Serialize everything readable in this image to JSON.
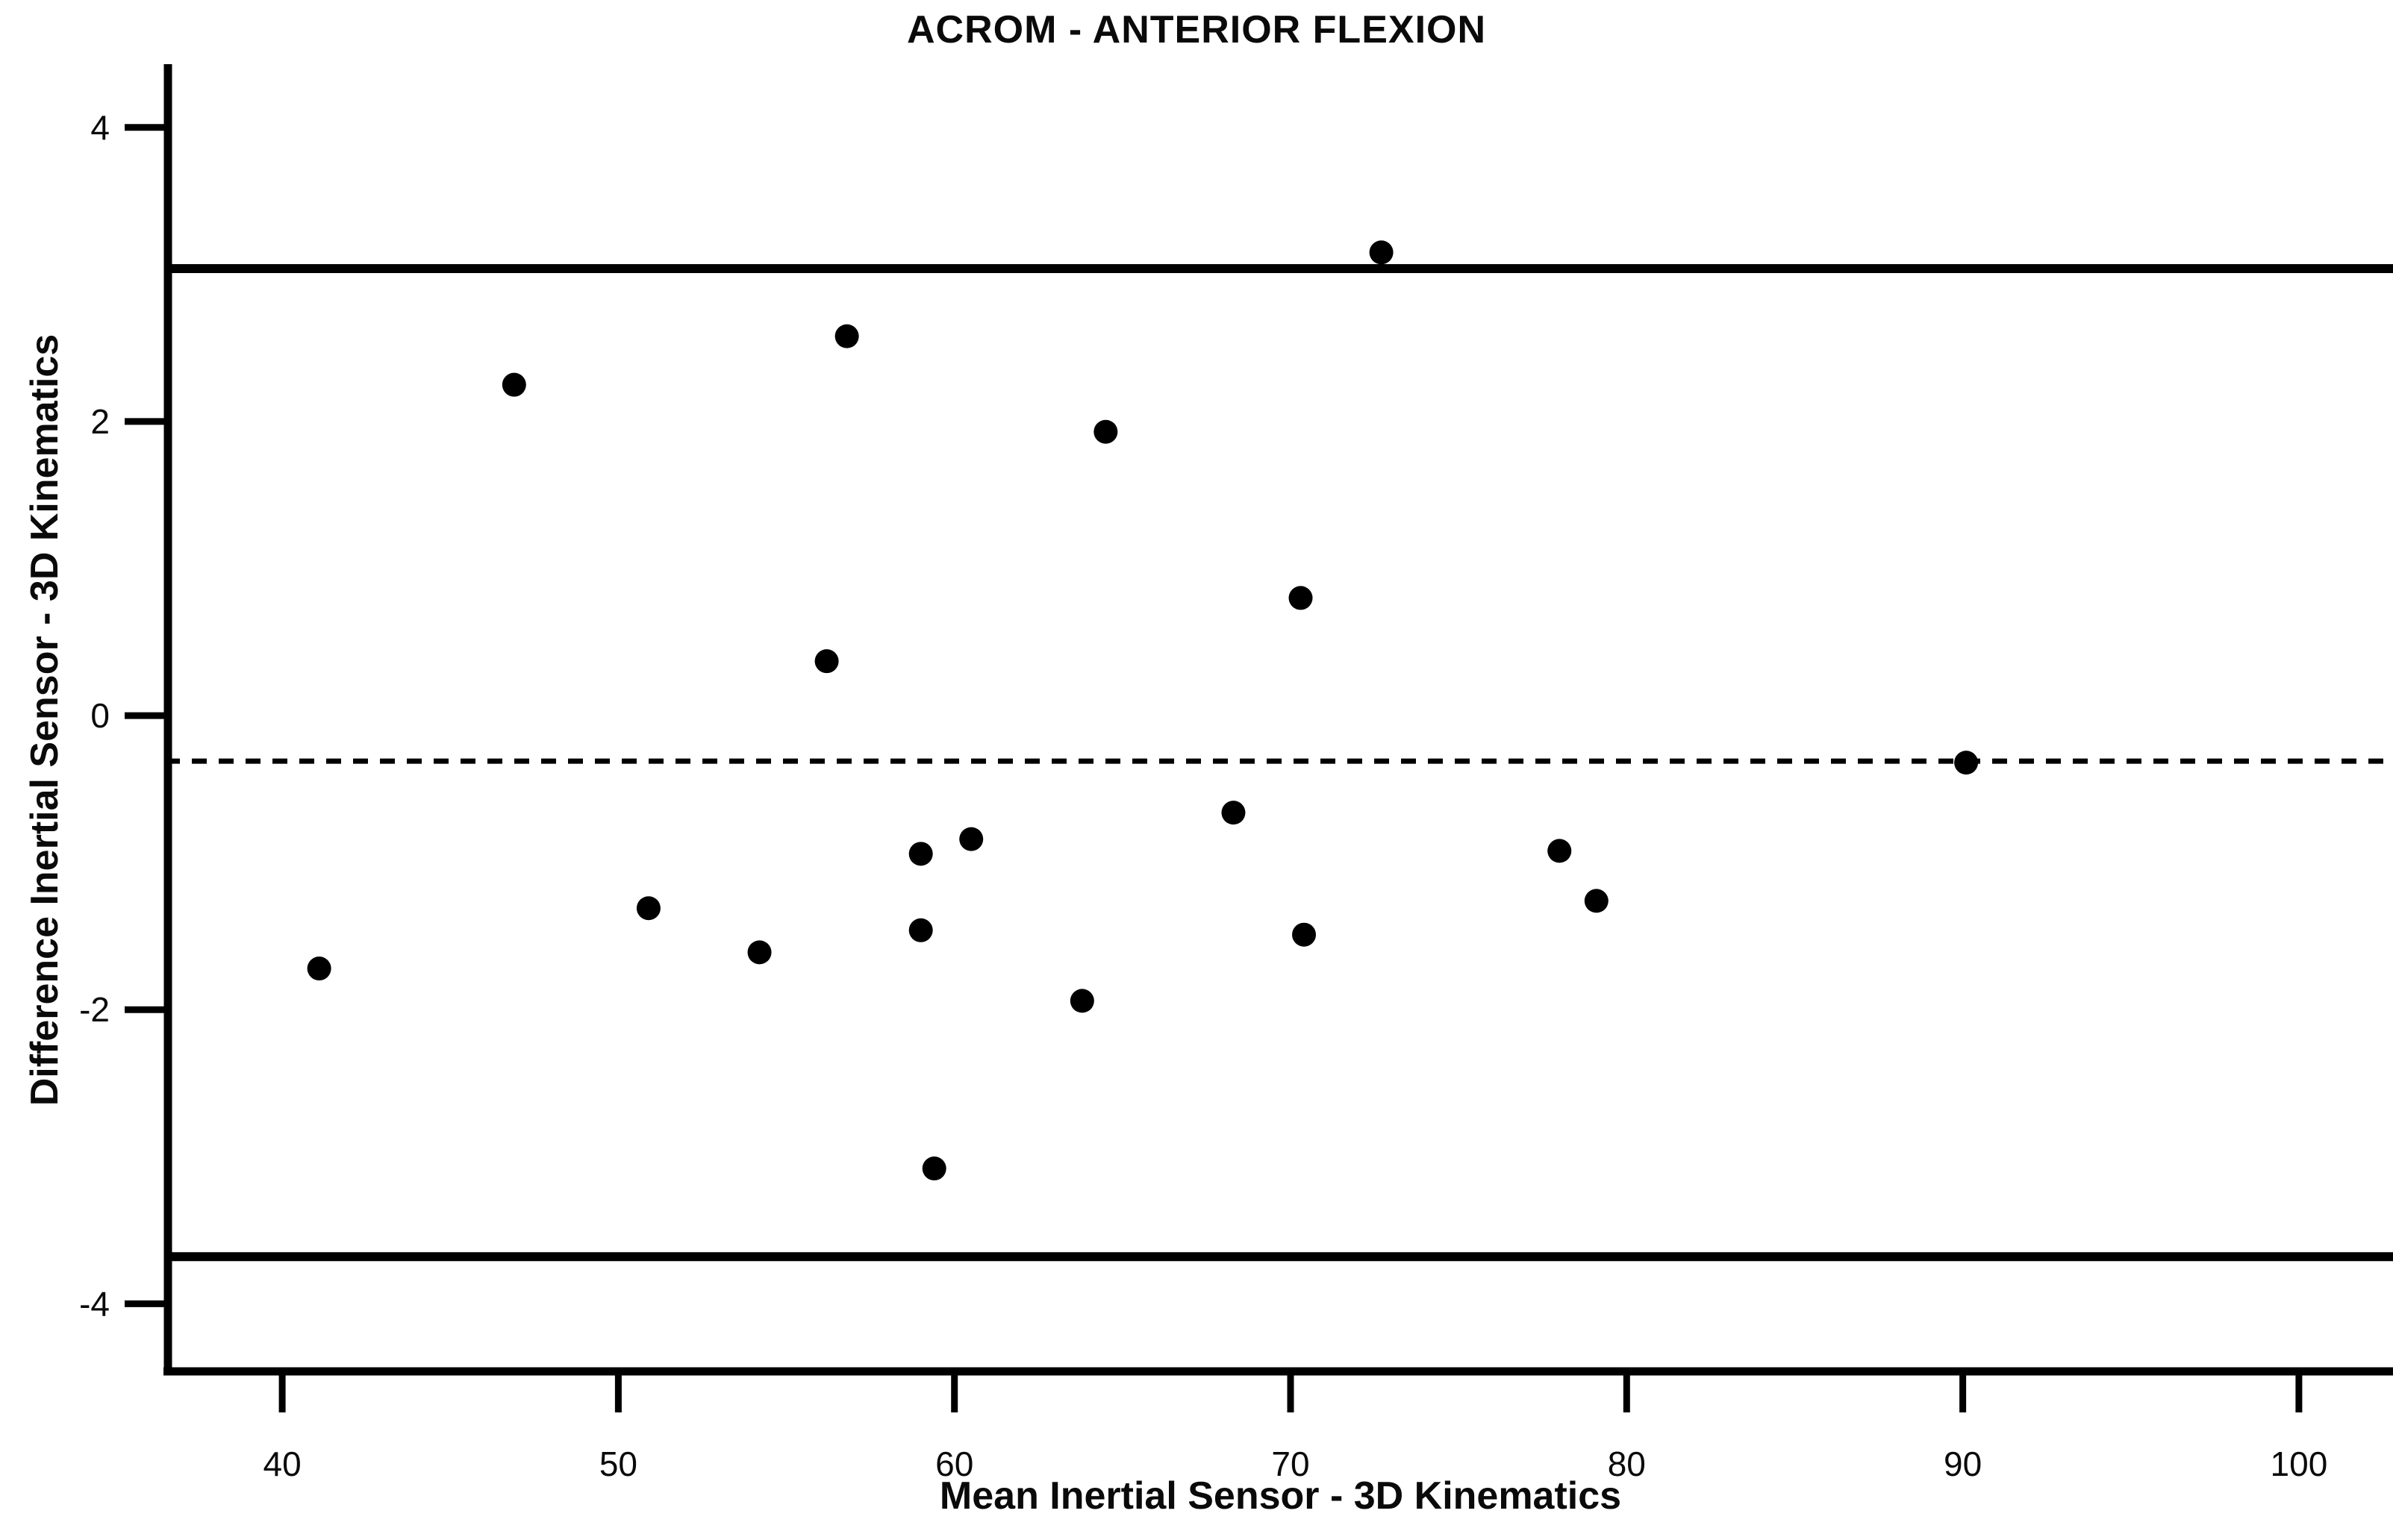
{
  "chart_data": {
    "type": "scatter",
    "title": "ACROM - ANTERIOR FLEXION",
    "xlabel": "Mean Inertial Sensor - 3D Kinematics",
    "ylabel": "Difference Inertial Sensor - 3D Kinematics",
    "x_ticks": [
      40,
      50,
      60,
      70,
      80,
      90,
      100
    ],
    "y_ticks": [
      4,
      2,
      0,
      -2,
      -4
    ],
    "xlim": [
      36.6,
      102.8
    ],
    "ylim": [
      -4.46,
      4.41
    ],
    "grid": false,
    "legend": "none",
    "marker_color": "#000000",
    "axis_color": "#000000",
    "points": [
      [
        41.1,
        -1.72
      ],
      [
        46.9,
        2.25
      ],
      [
        50.9,
        -1.31
      ],
      [
        54.2,
        -1.61
      ],
      [
        56.2,
        0.37
      ],
      [
        56.8,
        2.58
      ],
      [
        59.0,
        -0.94
      ],
      [
        59.0,
        -1.46
      ],
      [
        59.4,
        -3.08
      ],
      [
        60.5,
        -0.84
      ],
      [
        63.8,
        -1.94
      ],
      [
        64.5,
        1.93
      ],
      [
        68.3,
        -0.66
      ],
      [
        70.3,
        0.8
      ],
      [
        70.4,
        -1.49
      ],
      [
        72.7,
        3.15
      ],
      [
        78.0,
        -0.92
      ],
      [
        79.1,
        -1.26
      ],
      [
        90.1,
        -0.32
      ]
    ],
    "reference_lines": [
      {
        "name": "upper-limit-of-agreement",
        "value": 3.04,
        "style": "solid"
      },
      {
        "name": "mean-difference",
        "value": -0.31,
        "style": "dashed"
      },
      {
        "name": "lower-limit-of-agreement",
        "value": -3.68,
        "style": "solid"
      }
    ]
  }
}
